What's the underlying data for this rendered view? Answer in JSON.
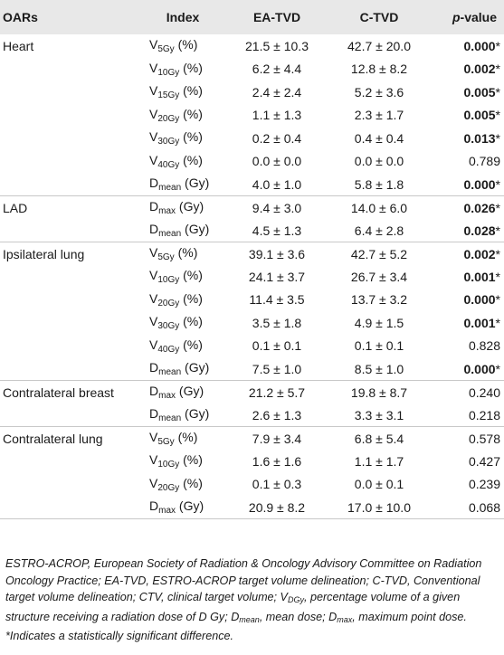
{
  "table": {
    "headers": {
      "oar": "OARs",
      "index": "Index",
      "ea_tvd": "EA-TVD",
      "c_tvd": "C-TVD",
      "p_value_italic": "p",
      "p_value_rest": "-value"
    },
    "groups": [
      {
        "oar": "Heart",
        "rows": [
          {
            "idx_main": "V",
            "idx_sub": "5Gy",
            "idx_unit": " (%)",
            "ea": "21.5 ± 10.3",
            "c": "42.7 ± 20.0",
            "p": "0.000",
            "star": "*",
            "sig": true
          },
          {
            "idx_main": "V",
            "idx_sub": "10Gy",
            "idx_unit": " (%)",
            "ea": "6.2 ± 4.4",
            "c": "12.8 ± 8.2",
            "p": "0.002",
            "star": "*",
            "sig": true
          },
          {
            "idx_main": "V",
            "idx_sub": "15Gy",
            "idx_unit": " (%)",
            "ea": "2.4 ± 2.4",
            "c": "5.2 ± 3.6",
            "p": "0.005",
            "star": "*",
            "sig": true
          },
          {
            "idx_main": "V",
            "idx_sub": "20Gy",
            "idx_unit": " (%)",
            "ea": "1.1 ± 1.3",
            "c": "2.3 ± 1.7",
            "p": "0.005",
            "star": "*",
            "sig": true
          },
          {
            "idx_main": "V",
            "idx_sub": "30Gy",
            "idx_unit": " (%)",
            "ea": "0.2 ± 0.4",
            "c": "0.4 ± 0.4",
            "p": "0.013",
            "star": "*",
            "sig": true
          },
          {
            "idx_main": "V",
            "idx_sub": "40Gy",
            "idx_unit": " (%)",
            "ea": "0.0 ± 0.0",
            "c": "0.0 ± 0.0",
            "p": "0.789",
            "star": "",
            "sig": false
          },
          {
            "idx_main": "D",
            "idx_sub": "mean",
            "idx_unit": " (Gy)",
            "ea": "4.0 ± 1.0",
            "c": "5.8 ± 1.8",
            "p": "0.000",
            "star": "*",
            "sig": true
          }
        ]
      },
      {
        "oar": "LAD",
        "rows": [
          {
            "idx_main": "D",
            "idx_sub": "max",
            "idx_unit": " (Gy)",
            "ea": "9.4 ± 3.0",
            "c": "14.0 ± 6.0",
            "p": "0.026",
            "star": "*",
            "sig": true
          },
          {
            "idx_main": "D",
            "idx_sub": "mean",
            "idx_unit": " (Gy)",
            "ea": "4.5 ± 1.3",
            "c": "6.4 ± 2.8",
            "p": "0.028",
            "star": "*",
            "sig": true
          }
        ]
      },
      {
        "oar": "Ipsilateral lung",
        "rows": [
          {
            "idx_main": "V",
            "idx_sub": "5Gy",
            "idx_unit": " (%)",
            "ea": "39.1 ± 3.6",
            "c": "42.7 ± 5.2",
            "p": "0.002",
            "star": "*",
            "sig": true
          },
          {
            "idx_main": "V",
            "idx_sub": "10Gy",
            "idx_unit": " (%)",
            "ea": "24.1 ± 3.7",
            "c": "26.7 ± 3.4",
            "p": "0.001",
            "star": "*",
            "sig": true
          },
          {
            "idx_main": "V",
            "idx_sub": "20Gy",
            "idx_unit": " (%)",
            "ea": "11.4 ± 3.5",
            "c": "13.7 ± 3.2",
            "p": "0.000",
            "star": "*",
            "sig": true
          },
          {
            "idx_main": "V",
            "idx_sub": "30Gy",
            "idx_unit": " (%)",
            "ea": "3.5 ± 1.8",
            "c": "4.9 ± 1.5",
            "p": "0.001",
            "star": "*",
            "sig": true
          },
          {
            "idx_main": "V",
            "idx_sub": "40Gy",
            "idx_unit": " (%)",
            "ea": "0.1 ± 0.1",
            "c": "0.1 ± 0.1",
            "p": "0.828",
            "star": "",
            "sig": false
          },
          {
            "idx_main": "D",
            "idx_sub": "mean",
            "idx_unit": " (Gy)",
            "ea": "7.5 ± 1.0",
            "c": "8.5 ± 1.0",
            "p": "0.000",
            "star": "*",
            "sig": true
          }
        ]
      },
      {
        "oar": "Contralateral breast",
        "rows": [
          {
            "idx_main": "D",
            "idx_sub": "max",
            "idx_unit": " (Gy)",
            "ea": "21.2 ± 5.7",
            "c": "19.8 ± 8.7",
            "p": "0.240",
            "star": "",
            "sig": false
          },
          {
            "idx_main": "D",
            "idx_sub": "mean",
            "idx_unit": " (Gy)",
            "ea": "2.6 ± 1.3",
            "c": "3.3 ± 3.1",
            "p": "0.218",
            "star": "",
            "sig": false
          }
        ]
      },
      {
        "oar": "Contralateral lung",
        "rows": [
          {
            "idx_main": "V",
            "idx_sub": "5Gy",
            "idx_unit": " (%)",
            "ea": "7.9 ± 3.4",
            "c": "6.8 ± 5.4",
            "p": "0.578",
            "star": "",
            "sig": false
          },
          {
            "idx_main": "V",
            "idx_sub": "10Gy",
            "idx_unit": " (%)",
            "ea": "1.6 ± 1.6",
            "c": "1.1 ± 1.7",
            "p": "0.427",
            "star": "",
            "sig": false
          },
          {
            "idx_main": "V",
            "idx_sub": "20Gy",
            "idx_unit": " (%)",
            "ea": "0.1 ± 0.3",
            "c": "0.0 ± 0.1",
            "p": "0.239",
            "star": "",
            "sig": false
          },
          {
            "idx_main": "D",
            "idx_sub": "max",
            "idx_unit": " (Gy)",
            "ea": "20.9 ± 8.2",
            "c": "17.0 ± 10.0",
            "p": "0.068",
            "star": "",
            "sig": false
          }
        ]
      }
    ]
  },
  "footnote": {
    "part1": "ESTRO-ACROP, European Society of Radiation & Oncology Advisory Committee on Radiation Oncology Practice; EA-TVD, ESTRO-ACROP target volume delineation; C-TVD, Conventional target volume delineation; CTV, clinical target volume; V",
    "sub1": "DGy",
    "part2": ", percentage volume of a given structure receiving a radiation dose of D Gy; D",
    "sub2": "mean",
    "part3": ", mean dose; D",
    "sub3": "max",
    "part4": ", maximum point dose. *Indicates a statistically significant difference."
  }
}
